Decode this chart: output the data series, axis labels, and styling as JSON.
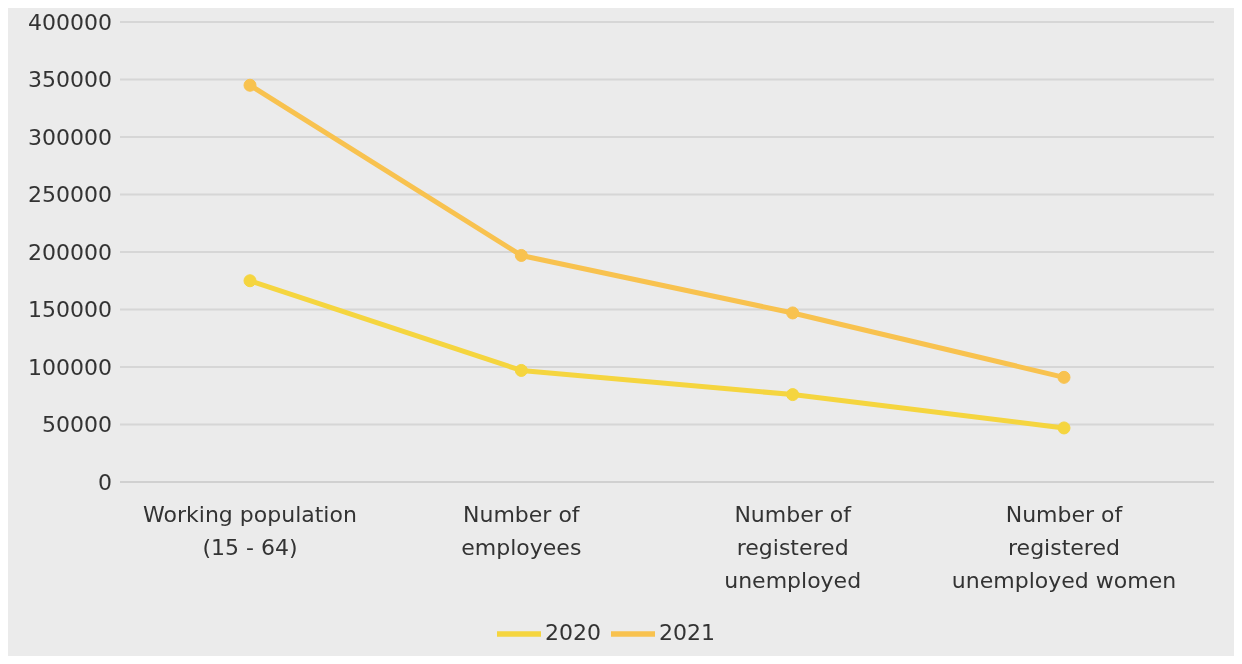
{
  "chart_data": {
    "type": "line",
    "categories": [
      "Working population (15 - 64)",
      "Number of employees",
      "Number of registered unemployed",
      "Number of registered unemployed women"
    ],
    "series": [
      {
        "name": "2020",
        "color": "#f5d53f",
        "values": [
          175000,
          97000,
          76000,
          47000
        ]
      },
      {
        "name": "2021",
        "color": "#f8c24f",
        "values": [
          345000,
          197000,
          147000,
          91000
        ]
      }
    ],
    "ylim": [
      0,
      400000
    ],
    "yticks": [
      0,
      50000,
      100000,
      150000,
      200000,
      250000,
      300000,
      350000,
      400000
    ],
    "grid": "y",
    "legend": "bottom",
    "marker": "circle",
    "line_style": "solid"
  }
}
